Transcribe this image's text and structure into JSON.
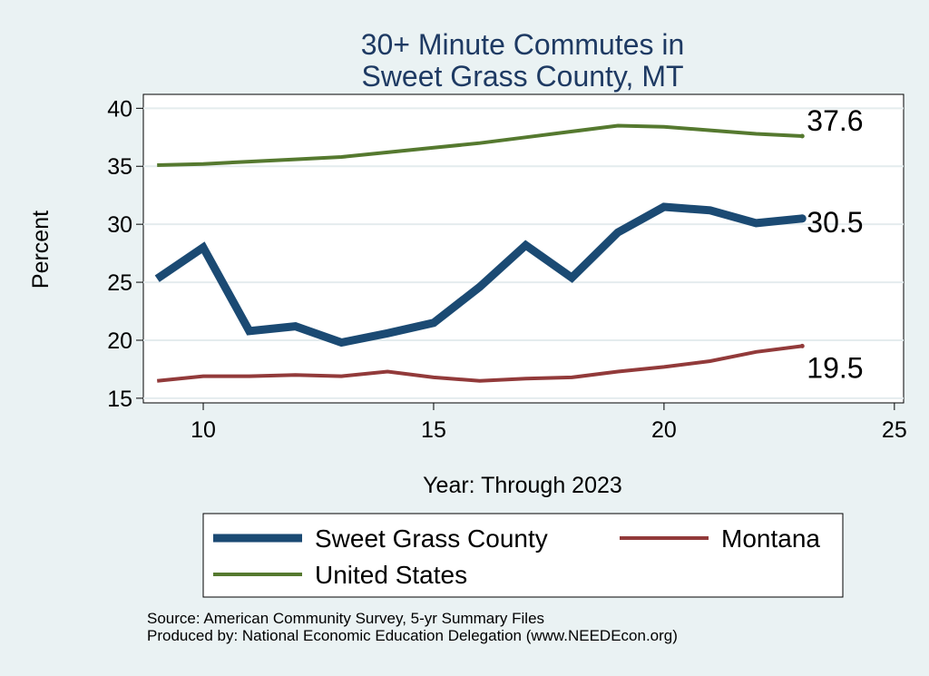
{
  "chart_data": {
    "type": "line",
    "title": [
      "30+ Minute Commutes in",
      "Sweet Grass County, MT"
    ],
    "xlabel": "Year: Through 2023",
    "ylabel": "Percent",
    "xlim": [
      8.7,
      25.2
    ],
    "ylim": [
      14.6,
      41.2
    ],
    "xticks": [
      10,
      15,
      20,
      25
    ],
    "yticks": [
      15,
      20,
      25,
      30,
      35,
      40
    ],
    "grid": true,
    "legend_position": "bottom",
    "series": [
      {
        "key": "sweet-grass",
        "name": "Sweet Grass County",
        "color": "#1b4a73",
        "x": [
          9,
          10,
          11,
          12,
          13,
          14,
          15,
          16,
          17,
          18,
          19,
          20,
          21,
          22,
          23
        ],
        "values": [
          25.3,
          28.0,
          20.8,
          21.2,
          19.8,
          20.6,
          21.5,
          24.6,
          28.2,
          25.4,
          29.3,
          31.5,
          31.2,
          30.1,
          30.5
        ],
        "end_label": "30.5"
      },
      {
        "key": "montana",
        "name": "Montana",
        "color": "#923a3a",
        "x": [
          9,
          10,
          11,
          12,
          13,
          14,
          15,
          16,
          17,
          18,
          19,
          20,
          21,
          22,
          23
        ],
        "values": [
          16.5,
          16.9,
          16.9,
          17.0,
          16.9,
          17.3,
          16.8,
          16.5,
          16.7,
          16.8,
          17.3,
          17.7,
          18.2,
          19.0,
          19.5
        ],
        "end_label": "19.5"
      },
      {
        "key": "united-states",
        "name": "United States",
        "color": "#55792f",
        "x": [
          9,
          10,
          11,
          12,
          13,
          14,
          15,
          16,
          17,
          18,
          19,
          20,
          21,
          22,
          23
        ],
        "values": [
          35.1,
          35.2,
          35.4,
          35.6,
          35.8,
          36.2,
          36.6,
          37.0,
          37.5,
          38.0,
          38.5,
          38.4,
          38.1,
          37.8,
          37.6
        ],
        "end_label": "37.6"
      }
    ]
  },
  "footer": {
    "source": "Source: American Community Survey, 5-yr Summary Files",
    "produced_by": "Produced by: National Economic Education Delegation (www.NEEDEcon.org)"
  }
}
